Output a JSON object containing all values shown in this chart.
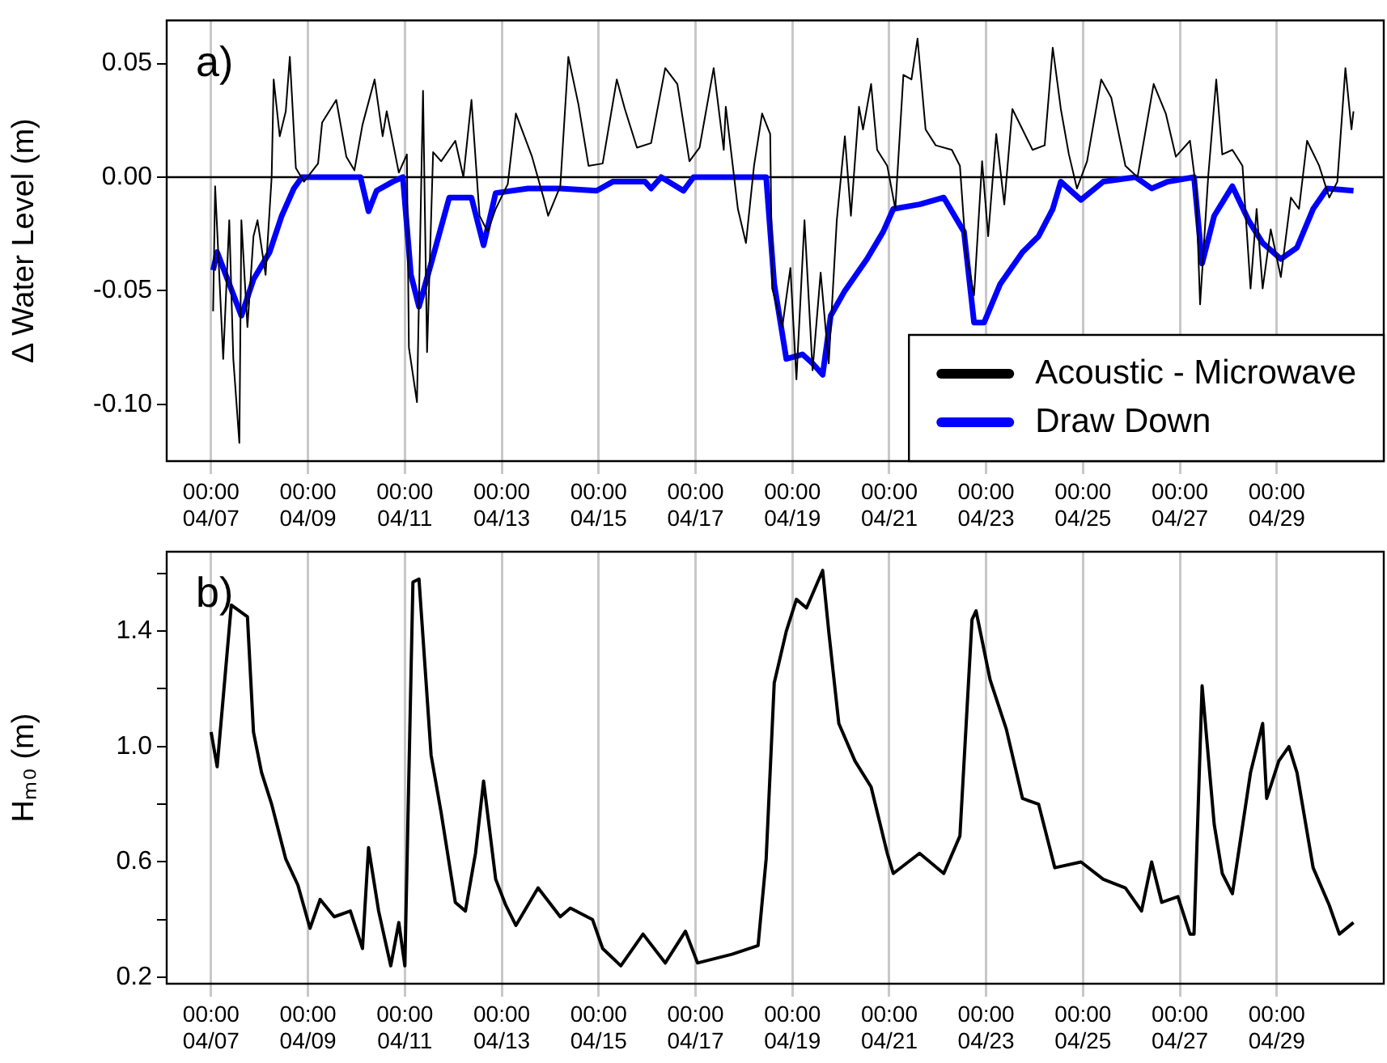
{
  "chart_data": [
    {
      "type": "line",
      "ylabel": "Δ Water Level (m)",
      "annotations": [
        "a)"
      ],
      "legend": "bottom right",
      "grid": "x",
      "marker": "none",
      "xlim": [
        "--04-06T02:00",
        "--05-01T05:00"
      ],
      "ylim": [
        -0.125,
        0.069
      ],
      "xticks": [
        {
          "value": "--04-07T00:00",
          "label": "00:00\n04/07"
        },
        {
          "value": "--04-09T00:00",
          "label": "00:00\n04/09"
        },
        {
          "value": "--04-11T00:00",
          "label": "00:00\n04/11"
        },
        {
          "value": "--04-13T00:00",
          "label": "00:00\n04/13"
        },
        {
          "value": "--04-15T00:00",
          "label": "00:00\n04/15"
        },
        {
          "value": "--04-17T00:00",
          "label": "00:00\n04/17"
        },
        {
          "value": "--04-19T00:00",
          "label": "00:00\n04/19"
        },
        {
          "value": "--04-21T00:00",
          "label": "00:00\n04/21"
        },
        {
          "value": "--04-23T00:00",
          "label": "00:00\n04/23"
        },
        {
          "value": "--04-25T00:00",
          "label": "00:00\n04/25"
        },
        {
          "value": "--04-27T00:00",
          "label": "00:00\n04/27"
        },
        {
          "value": "--04-29T00:00",
          "label": "00:00\n04/29"
        }
      ],
      "yticks": [
        {
          "value": 0.05,
          "label": "0.05"
        },
        {
          "value": 0,
          "label": "0.00"
        },
        {
          "value": -0.05,
          "label": "-0.05"
        },
        {
          "value": -0.1,
          "label": "-0.10"
        }
      ],
      "ref_lines": [
        {
          "axis": "y",
          "value": 0,
          "label": null,
          "color": "#000000"
        }
      ],
      "series": [
        {
          "name": "Acoustic - Microwave",
          "color": "#000000",
          "x": [
            "--04-07T01:00",
            "--04-07T02:00",
            "--04-07T06:00",
            "--04-07T09:00",
            "--04-07T11:00",
            "--04-07T14:00",
            "--04-07T15:00",
            "--04-07T18:00",
            "--04-07T21:00",
            "--04-07T23:00",
            "--04-08T03:00",
            "--04-08T06:00",
            "--04-08T07:00",
            "--04-08T10:00",
            "--04-08T13:00",
            "--04-08T15:00",
            "--04-08T18:00",
            "--04-08T22:00",
            "--04-09T05:00",
            "--04-09T07:00",
            "--04-09T14:00",
            "--04-09T19:00",
            "--04-09T23:00",
            "--04-10T03:00",
            "--04-10T09:00",
            "--04-10T13:00",
            "--04-10T15:00",
            "--04-10T21:00",
            "--04-11T01:00",
            "--04-11T02:00",
            "--04-11T06:00",
            "--04-11T09:00",
            "--04-11T11:00",
            "--04-11T14:00",
            "--04-11T18:00",
            "--04-12T01:00",
            "--04-12T05:00",
            "--04-12T09:00",
            "--04-12T13:00",
            "--04-12T17:00",
            "--04-12T21:00",
            "--04-13T03:00",
            "--04-13T07:00",
            "--04-13T15:00",
            "--04-13T21:00",
            "--04-13T23:00",
            "--04-14T05:00",
            "--04-14T09:00",
            "--04-14T14:00",
            "--04-14T19:00",
            "--04-15T02:00",
            "--04-15T09:00",
            "--04-15T13:00",
            "--04-15T19:00",
            "--04-16T02:00",
            "--04-16T09:00",
            "--04-16T15:00",
            "--04-16T21:00",
            "--04-17T02:00",
            "--04-17T09:00",
            "--04-17T14:00",
            "--04-17T15:00",
            "--04-17T21:00",
            "--04-18T01:00",
            "--04-18T05:00",
            "--04-18T09:00",
            "--04-18T13:00",
            "--04-18T14:00",
            "--04-18T19:00",
            "--04-18T23:00",
            "--04-19T02:00",
            "--04-19T06:00",
            "--04-19T10:00",
            "--04-19T14:00",
            "--04-19T18:00",
            "--04-19T22:00",
            "--04-20T02:00",
            "--04-20T05:00",
            "--04-20T09:00",
            "--04-20T11:00",
            "--04-20T15:00",
            "--04-20T18:00",
            "--04-20T23:00",
            "--04-21T03:00",
            "--04-21T07:00",
            "--04-21T11:00",
            "--04-21T14:00",
            "--04-21T18:00",
            "--04-21T23:00",
            "--04-22T07:00",
            "--04-22T11:00",
            "--04-22T14:00",
            "--04-22T18:00",
            "--04-22T22:00",
            "--04-23T01:00",
            "--04-23T05:00",
            "--04-23T09:00",
            "--04-23T13:00",
            "--04-23T18:00",
            "--04-23T23:00",
            "--04-24T05:00",
            "--04-24T09:00",
            "--04-24T13:00",
            "--04-24T17:00",
            "--04-24T21:00",
            "--04-25T02:00",
            "--04-25T09:00",
            "--04-25T14:00",
            "--04-25T21:00",
            "--04-26T03:00",
            "--04-26T11:00",
            "--04-26T17:00",
            "--04-26T22:00",
            "--04-27T05:00",
            "--04-27T08:00",
            "--04-27T10:00",
            "--04-27T14:00",
            "--04-27T18:00",
            "--04-27T21:00",
            "--04-28T02:00",
            "--04-28T07:00",
            "--04-28T11:00",
            "--04-28T14:00",
            "--04-28T17:00",
            "--04-28T21:00",
            "--04-29T02:00",
            "--04-29T07:00",
            "--04-29T11:00",
            "--04-29T15:00",
            "--04-29T21:00",
            "--04-30T02:00",
            "--04-30T06:00",
            "--04-30T10:00",
            "--04-30T13:00",
            "--04-30T14:00"
          ],
          "values": [
            -0.059,
            -0.004,
            -0.08,
            -0.019,
            -0.08,
            -0.117,
            -0.019,
            -0.066,
            -0.026,
            -0.019,
            -0.043,
            0,
            0.043,
            0.018,
            0.029,
            0.053,
            0.004,
            -0.002,
            0.006,
            0.024,
            0.034,
            0.009,
            0.003,
            0.023,
            0.043,
            0.018,
            0.029,
            0.002,
            0.01,
            -0.075,
            -0.099,
            0.038,
            -0.077,
            0.011,
            0.007,
            0.016,
            0,
            0.034,
            -0.017,
            -0.024,
            -0.014,
            -0.003,
            0.028,
            0.009,
            -0.01,
            -0.017,
            -0.004,
            0.053,
            0.032,
            0.005,
            0.006,
            0.043,
            0.03,
            0.013,
            0.015,
            0.048,
            0.041,
            0.007,
            0.013,
            0.048,
            0.012,
            0.031,
            -0.014,
            -0.029,
            0.005,
            0.028,
            0.019,
            -0.049,
            -0.066,
            -0.04,
            -0.089,
            -0.019,
            -0.085,
            -0.042,
            -0.082,
            -0.019,
            0.018,
            -0.017,
            0.031,
            0.021,
            0.041,
            0.012,
            0.005,
            -0.014,
            0.045,
            0.043,
            0.061,
            0.021,
            0.014,
            0.012,
            0.005,
            -0.033,
            -0.052,
            0.007,
            -0.026,
            0.019,
            -0.012,
            0.03,
            0.021,
            0.012,
            0.014,
            0.057,
            0.03,
            0.01,
            -0.005,
            0.007,
            0.043,
            0.035,
            0.005,
            0,
            0.041,
            0.028,
            0.009,
            0.016,
            -0.005,
            -0.056,
            0,
            0.043,
            0.01,
            0.012,
            0.005,
            -0.049,
            -0.014,
            -0.049,
            -0.023,
            -0.044,
            -0.009,
            -0.014,
            0.016,
            0.005,
            -0.009,
            -0.002,
            0.048,
            0.021,
            0.029
          ]
        },
        {
          "name": "Draw Down",
          "color": "#0000ff",
          "x": [
            "--04-07T01:00",
            "--04-07T03:00",
            "--04-07T09:00",
            "--04-07T15:00",
            "--04-07T21:00",
            "--04-08T05:00",
            "--04-08T11:00",
            "--04-08T17:00",
            "--04-08T21:00",
            "--04-10T02:00",
            "--04-10T06:00",
            "--04-10T10:00",
            "--04-10T18:00",
            "--04-10T23:00",
            "--04-11T03:00",
            "--04-11T07:00",
            "--04-11T13:00",
            "--04-11T22:00",
            "--04-12T09:00",
            "--04-12T15:00",
            "--04-12T21:00",
            "--04-13T13:00",
            "--04-14T05:00",
            "--04-14T23:00",
            "--04-15T07:00",
            "--04-15T23:00",
            "--04-16T02:00",
            "--04-16T07:00",
            "--04-16T18:00",
            "--04-16T23:00",
            "--04-18T11:00",
            "--04-18T15:00",
            "--04-18T21:00",
            "--04-19T05:00",
            "--04-19T10:00",
            "--04-19T15:00",
            "--04-19T19:00",
            "--04-20T02:00",
            "--04-20T13:00",
            "--04-20T21:00",
            "--04-21T02:00",
            "--04-21T15:00",
            "--04-22T03:00",
            "--04-22T13:00",
            "--04-22T18:00",
            "--04-22T23:00",
            "--04-23T07:00",
            "--04-23T18:00",
            "--04-24T02:00",
            "--04-24T09:00",
            "--04-24T13:00",
            "--04-24T23:00",
            "--04-25T10:00",
            "--04-26T02:00",
            "--04-26T10:00",
            "--04-26T18:00",
            "--04-27T07:00",
            "--04-27T11:00",
            "--04-27T17:00",
            "--04-28T02:00",
            "--04-28T10:00",
            "--04-28T17:00",
            "--04-29T02:00",
            "--04-29T10:00",
            "--04-29T18:00",
            "--04-30T01:00",
            "--04-30T14:00"
          ],
          "values": [
            -0.041,
            -0.033,
            -0.047,
            -0.061,
            -0.045,
            -0.033,
            -0.017,
            -0.005,
            0,
            0,
            -0.015,
            -0.006,
            -0.002,
            0,
            -0.043,
            -0.057,
            -0.038,
            -0.009,
            -0.009,
            -0.03,
            -0.007,
            -0.005,
            -0.005,
            -0.006,
            -0.002,
            -0.002,
            -0.005,
            0,
            -0.006,
            0,
            0,
            -0.047,
            -0.08,
            -0.078,
            -0.082,
            -0.087,
            -0.061,
            -0.05,
            -0.036,
            -0.024,
            -0.014,
            -0.012,
            -0.009,
            -0.024,
            -0.064,
            -0.064,
            -0.047,
            -0.033,
            -0.026,
            -0.014,
            -0.002,
            -0.01,
            -0.002,
            0,
            -0.005,
            -0.002,
            0,
            -0.038,
            -0.017,
            -0.004,
            -0.019,
            -0.029,
            -0.036,
            -0.031,
            -0.014,
            -0.005,
            -0.006
          ]
        }
      ]
    },
    {
      "type": "line",
      "ylabel": "Hₘ₀ (m)",
      "annotations": [
        "b)"
      ],
      "grid": "x",
      "marker": "none",
      "xlim": [
        "--04-06T02:00",
        "--05-01T05:00"
      ],
      "ylim": [
        0.178,
        1.675
      ],
      "xticks": [
        {
          "value": "--04-07T00:00",
          "label": "00:00\n04/07"
        },
        {
          "value": "--04-09T00:00",
          "label": "00:00\n04/09"
        },
        {
          "value": "--04-11T00:00",
          "label": "00:00\n04/11"
        },
        {
          "value": "--04-13T00:00",
          "label": "00:00\n04/13"
        },
        {
          "value": "--04-15T00:00",
          "label": "00:00\n04/15"
        },
        {
          "value": "--04-17T00:00",
          "label": "00:00\n04/17"
        },
        {
          "value": "--04-19T00:00",
          "label": "00:00\n04/19"
        },
        {
          "value": "--04-21T00:00",
          "label": "00:00\n04/21"
        },
        {
          "value": "--04-23T00:00",
          "label": "00:00\n04/23"
        },
        {
          "value": "--04-25T00:00",
          "label": "00:00\n04/25"
        },
        {
          "value": "--04-27T00:00",
          "label": "00:00\n04/27"
        },
        {
          "value": "--04-29T00:00",
          "label": "00:00\n04/29"
        }
      ],
      "yticks": [
        {
          "value": 0.2,
          "label": "0.2"
        },
        {
          "value": 0.4,
          "label": null
        },
        {
          "value": 0.6,
          "label": "0.6"
        },
        {
          "value": 0.8,
          "label": null
        },
        {
          "value": 1.0,
          "label": "1.0"
        },
        {
          "value": 1.2,
          "label": null
        },
        {
          "value": 1.4,
          "label": "1.4"
        },
        {
          "value": 1.6,
          "label": null
        }
      ],
      "series": [
        {
          "color": "#000000",
          "x": [
            "--04-07T00:00",
            "--04-07T03:00",
            "--04-07T10:00",
            "--04-07T18:00",
            "--04-07T21:00",
            "--04-08T01:00",
            "--04-08T06:00",
            "--04-08T13:00",
            "--04-08T19:00",
            "--04-09T01:00",
            "--04-09T06:00",
            "--04-09T13:00",
            "--04-09T21:00",
            "--04-10T03:00",
            "--04-10T06:00",
            "--04-10T11:00",
            "--04-10T17:00",
            "--04-10T21:00",
            "--04-11T00:00",
            "--04-11T04:00",
            "--04-11T07:00",
            "--04-11T13:00",
            "--04-11T18:00",
            "--04-12T01:00",
            "--04-12T06:00",
            "--04-12T11:00",
            "--04-12T15:00",
            "--04-12T21:00",
            "--04-13T02:00",
            "--04-13T07:00",
            "--04-13T18:00",
            "--04-14T05:00",
            "--04-14T10:00",
            "--04-14T21:00",
            "--04-15T02:00",
            "--04-15T11:00",
            "--04-15T22:00",
            "--04-16T09:00",
            "--04-16T19:00",
            "--04-17T01:00",
            "--04-17T18:00",
            "--04-18T07:00",
            "--04-18T11:00",
            "--04-18T15:00",
            "--04-18T21:00",
            "--04-19T02:00",
            "--04-19T07:00",
            "--04-19T15:00",
            "--04-19T18:00",
            "--04-19T23:00",
            "--04-20T07:00",
            "--04-20T15:00",
            "--04-20T23:00",
            "--04-21T02:00",
            "--04-21T15:00",
            "--04-22T03:00",
            "--04-22T11:00",
            "--04-22T17:00",
            "--04-22T19:00",
            "--04-23T02:00",
            "--04-23T10:00",
            "--04-23T18:00",
            "--04-24T02:00",
            "--04-24T10:00",
            "--04-24T23:00",
            "--04-25T10:00",
            "--04-25T21:00",
            "--04-26T05:00",
            "--04-26T10:00",
            "--04-26T15:00",
            "--04-26T23:00",
            "--04-27T05:00",
            "--04-27T07:00",
            "--04-27T11:00",
            "--04-27T17:00",
            "--04-27T21:00",
            "--04-28T02:00",
            "--04-28T11:00",
            "--04-28T17:00",
            "--04-28T19:00",
            "--04-29T01:00",
            "--04-29T06:00",
            "--04-29T10:00",
            "--04-29T18:00",
            "--04-30T02:00",
            "--04-30T07:00",
            "--04-30T14:00"
          ],
          "values": [
            1.05,
            0.93,
            1.49,
            1.45,
            1.05,
            0.91,
            0.8,
            0.61,
            0.52,
            0.37,
            0.47,
            0.41,
            0.43,
            0.3,
            0.65,
            0.43,
            0.24,
            0.39,
            0.24,
            1.57,
            1.58,
            0.97,
            0.77,
            0.46,
            0.43,
            0.63,
            0.88,
            0.54,
            0.45,
            0.38,
            0.51,
            0.41,
            0.44,
            0.4,
            0.3,
            0.24,
            0.35,
            0.25,
            0.36,
            0.25,
            0.28,
            0.31,
            0.61,
            1.22,
            1.4,
            1.51,
            1.48,
            1.61,
            1.4,
            1.08,
            0.95,
            0.86,
            0.63,
            0.56,
            0.63,
            0.56,
            0.69,
            1.44,
            1.47,
            1.23,
            1.06,
            0.82,
            0.8,
            0.58,
            0.6,
            0.54,
            0.51,
            0.43,
            0.6,
            0.46,
            0.48,
            0.35,
            0.35,
            1.21,
            0.73,
            0.56,
            0.49,
            0.91,
            1.08,
            0.82,
            0.95,
            1.0,
            0.91,
            0.58,
            0.45,
            0.35,
            0.39
          ]
        }
      ]
    }
  ]
}
